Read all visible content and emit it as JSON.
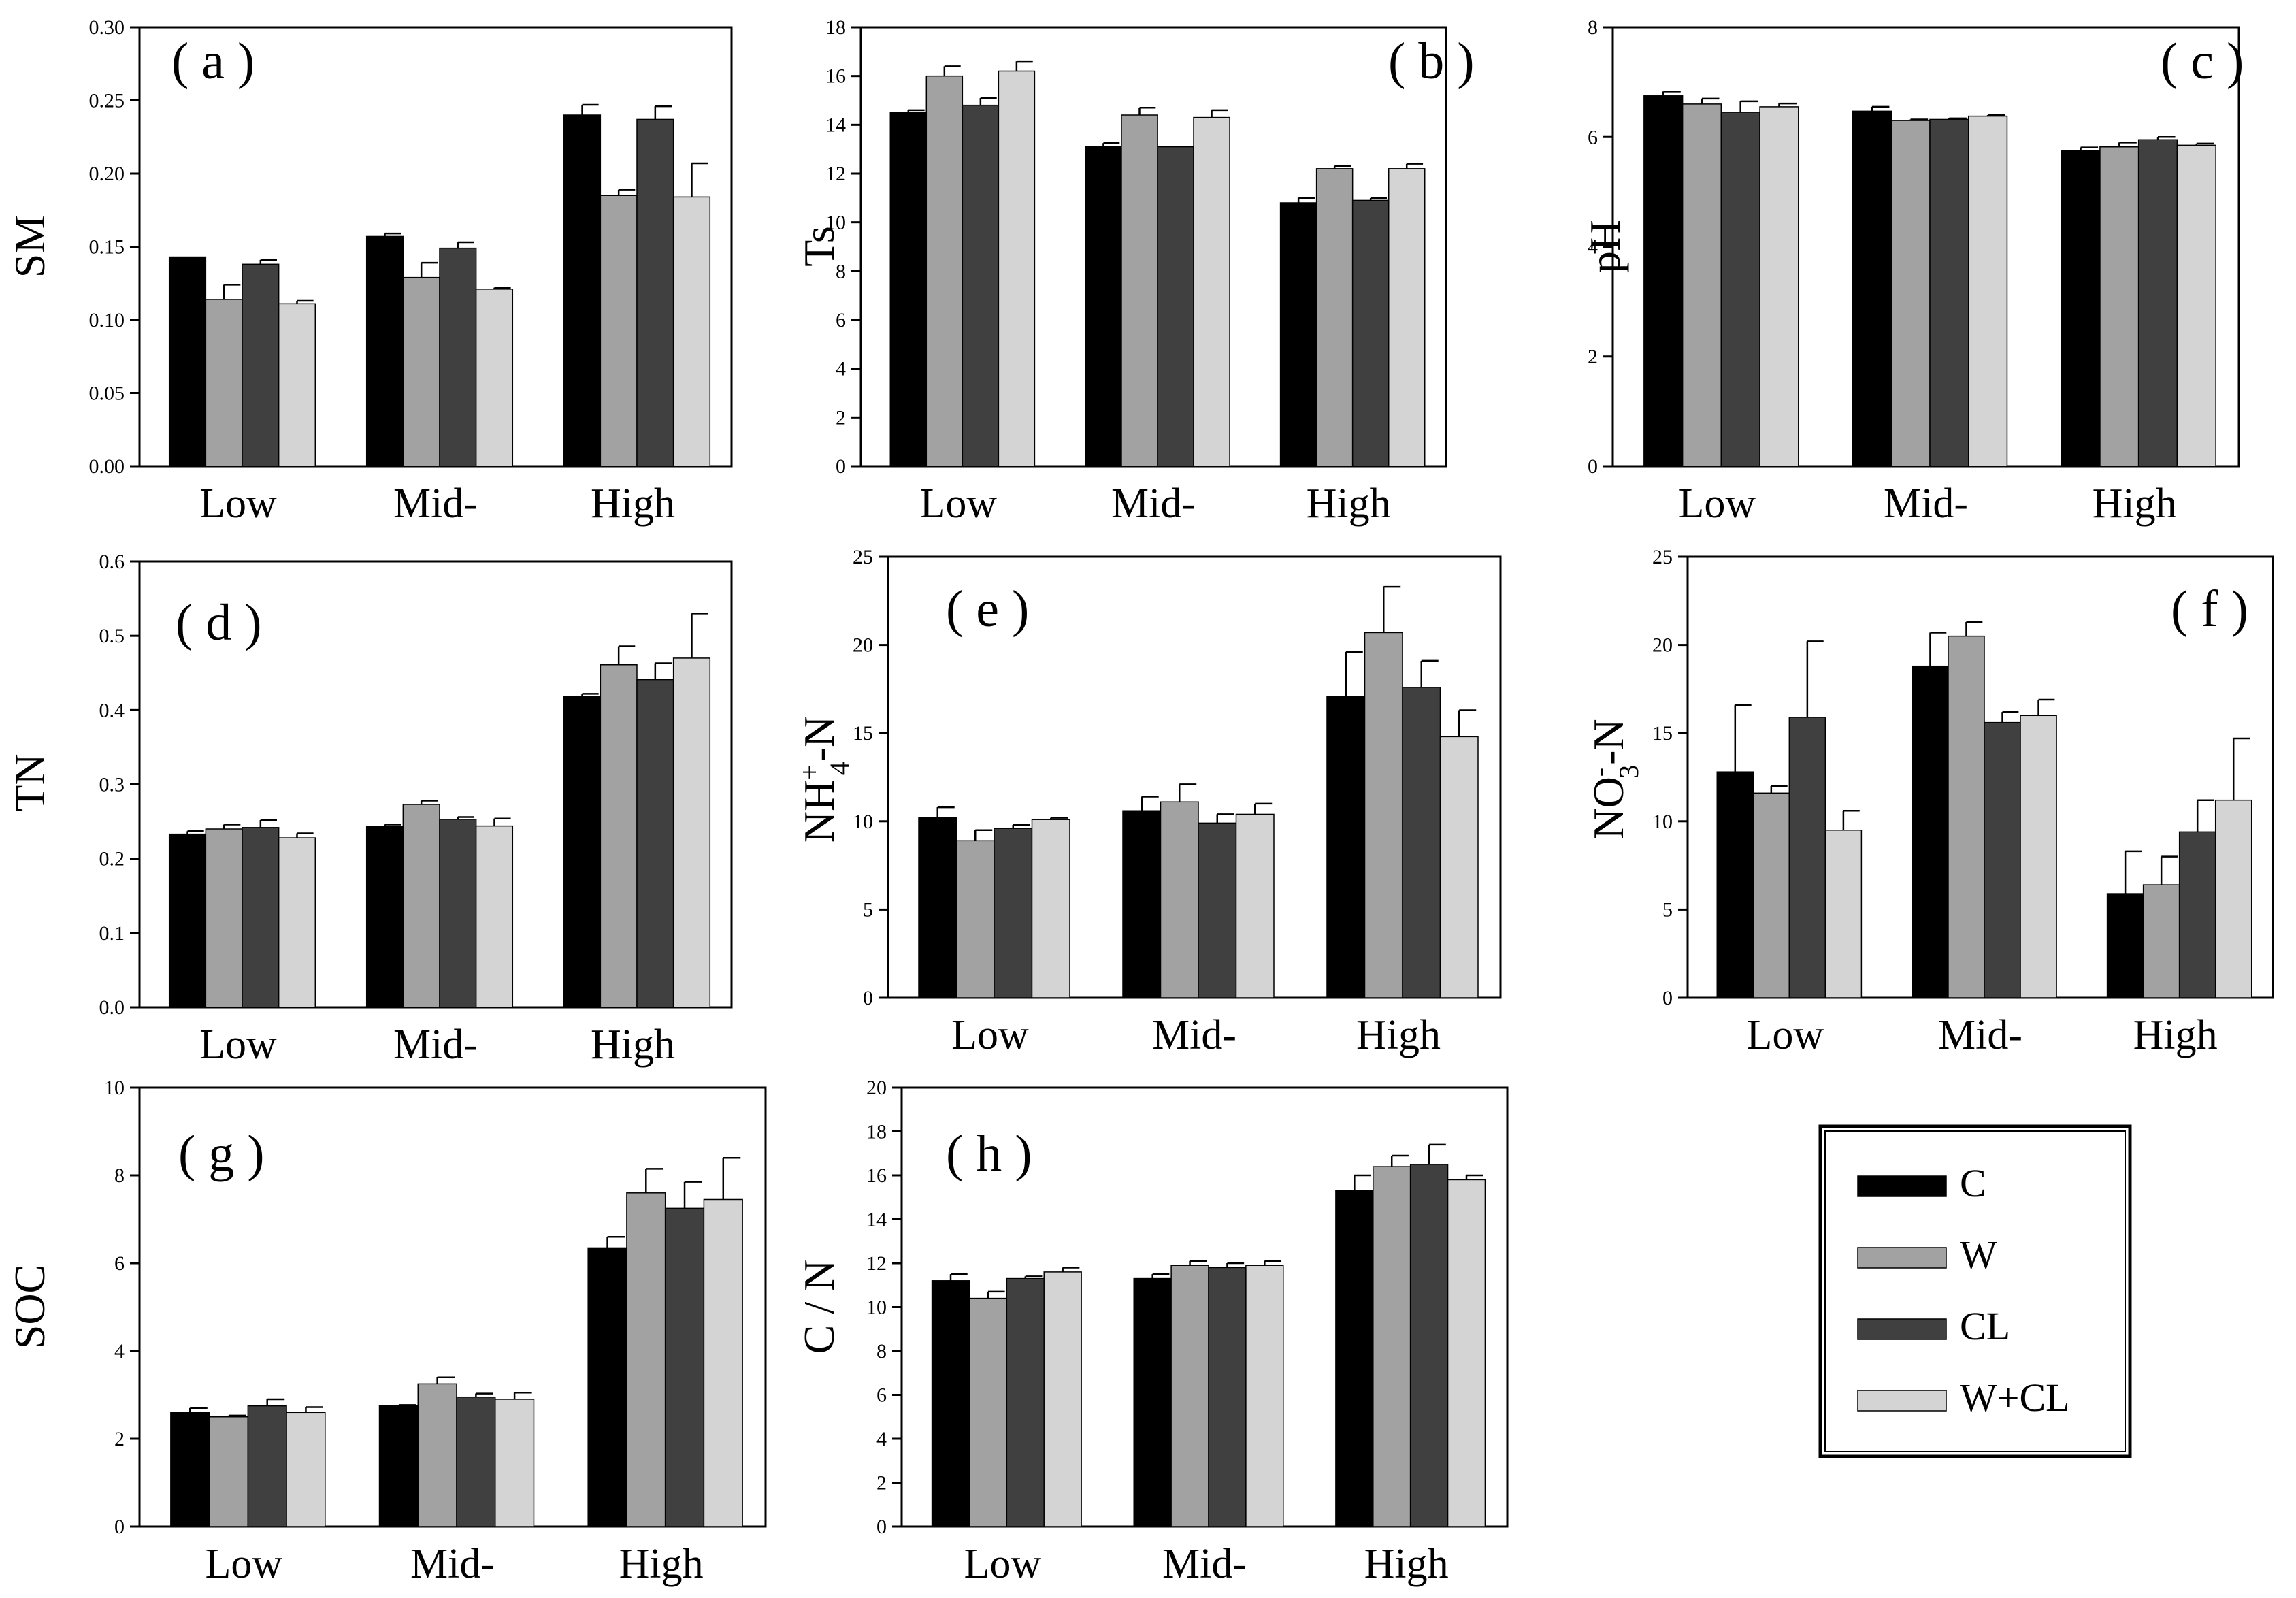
{
  "series_colors": {
    "C": "#000000",
    "W": "#a2a2a2",
    "CL": "#404040",
    "W+CL": "#d4d4d4"
  },
  "legend": {
    "entries": [
      "C",
      "W",
      "CL",
      "W+CL"
    ]
  },
  "chart_data": [
    {
      "id": "a",
      "type": "bar",
      "title": "( a )",
      "ylabel": "SM",
      "categories": [
        "Low",
        "Mid-",
        "High"
      ],
      "ylim": [
        0,
        0.3
      ],
      "yticks": [
        "0.00",
        "0.05",
        "0.10",
        "0.15",
        "0.20",
        "0.25",
        "0.30"
      ],
      "series": [
        {
          "name": "C",
          "values": [
            0.143,
            0.157,
            0.24
          ],
          "errors": [
            0.0,
            0.002,
            0.007
          ]
        },
        {
          "name": "W",
          "values": [
            0.114,
            0.129,
            0.185
          ],
          "errors": [
            0.01,
            0.01,
            0.004
          ]
        },
        {
          "name": "CL",
          "values": [
            0.138,
            0.149,
            0.237
          ],
          "errors": [
            0.003,
            0.004,
            0.009
          ]
        },
        {
          "name": "W+CL",
          "values": [
            0.111,
            0.121,
            0.184
          ],
          "errors": [
            0.002,
            0.001,
            0.023
          ]
        }
      ]
    },
    {
      "id": "b",
      "type": "bar",
      "title": "( b )",
      "ylabel": "Ts",
      "categories": [
        "Low",
        "Mid-",
        "High"
      ],
      "ylim": [
        0,
        18
      ],
      "yticks": [
        "0",
        "2",
        "4",
        "6",
        "8",
        "10",
        "12",
        "14",
        "16",
        "18"
      ],
      "series": [
        {
          "name": "C",
          "values": [
            14.5,
            13.1,
            10.8
          ],
          "errors": [
            0.1,
            0.15,
            0.2
          ]
        },
        {
          "name": "W",
          "values": [
            16.0,
            14.4,
            12.2
          ],
          "errors": [
            0.4,
            0.3,
            0.1
          ]
        },
        {
          "name": "CL",
          "values": [
            14.8,
            13.1,
            10.9
          ],
          "errors": [
            0.3,
            0.0,
            0.1
          ]
        },
        {
          "name": "W+CL",
          "values": [
            16.2,
            14.3,
            12.2
          ],
          "errors": [
            0.4,
            0.3,
            0.2
          ]
        }
      ]
    },
    {
      "id": "c",
      "type": "bar",
      "title": "( c )",
      "ylabel": "pH",
      "categories": [
        "Low",
        "Mid-",
        "High"
      ],
      "ylim": [
        0,
        8
      ],
      "yticks": [
        "0",
        "2",
        "4",
        "6",
        "8"
      ],
      "series": [
        {
          "name": "C",
          "values": [
            6.75,
            6.47,
            5.75
          ],
          "errors": [
            0.08,
            0.08,
            0.06
          ]
        },
        {
          "name": "W",
          "values": [
            6.6,
            6.3,
            5.82
          ],
          "errors": [
            0.1,
            0.02,
            0.08
          ]
        },
        {
          "name": "CL",
          "values": [
            6.45,
            6.32,
            5.95
          ],
          "errors": [
            0.2,
            0.02,
            0.05
          ]
        },
        {
          "name": "W+CL",
          "values": [
            6.55,
            6.38,
            5.85
          ],
          "errors": [
            0.06,
            0.02,
            0.03
          ]
        }
      ]
    },
    {
      "id": "d",
      "type": "bar",
      "title": "( d )",
      "ylabel": "TN",
      "categories": [
        "Low",
        "Mid-",
        "High"
      ],
      "ylim": [
        0,
        0.6
      ],
      "yticks": [
        "0.0",
        "0.1",
        "0.2",
        "0.3",
        "0.4",
        "0.5",
        "0.6"
      ],
      "series": [
        {
          "name": "C",
          "values": [
            0.233,
            0.243,
            0.418
          ],
          "errors": [
            0.004,
            0.003,
            0.004
          ]
        },
        {
          "name": "W",
          "values": [
            0.24,
            0.273,
            0.461
          ],
          "errors": [
            0.006,
            0.005,
            0.025
          ]
        },
        {
          "name": "CL",
          "values": [
            0.242,
            0.253,
            0.441
          ],
          "errors": [
            0.01,
            0.003,
            0.022
          ]
        },
        {
          "name": "W+CL",
          "values": [
            0.228,
            0.244,
            0.47
          ],
          "errors": [
            0.006,
            0.01,
            0.06
          ]
        }
      ]
    },
    {
      "id": "e",
      "type": "bar",
      "title": "( e )",
      "ylabel_main": "NH",
      "ylabel_sup": "+",
      "ylabel_sub": "4",
      "ylabel_tail": "-N",
      "categories": [
        "Low",
        "Mid-",
        "High"
      ],
      "ylim": [
        0,
        25
      ],
      "yticks": [
        "0",
        "5",
        "10",
        "15",
        "20",
        "25"
      ],
      "series": [
        {
          "name": "C",
          "values": [
            10.2,
            10.6,
            17.1
          ],
          "errors": [
            0.6,
            0.8,
            2.5
          ]
        },
        {
          "name": "W",
          "values": [
            8.9,
            11.1,
            20.7
          ],
          "errors": [
            0.6,
            1.0,
            2.6
          ]
        },
        {
          "name": "CL",
          "values": [
            9.6,
            9.9,
            17.6
          ],
          "errors": [
            0.2,
            0.5,
            1.5
          ]
        },
        {
          "name": "W+CL",
          "values": [
            10.1,
            10.4,
            14.8
          ],
          "errors": [
            0.1,
            0.6,
            1.5
          ]
        }
      ]
    },
    {
      "id": "f",
      "type": "bar",
      "title": "( f )",
      "ylabel_main": "NO",
      "ylabel_sup": "-",
      "ylabel_sub": "3",
      "ylabel_tail": "-N",
      "categories": [
        "Low",
        "Mid-",
        "High"
      ],
      "ylim": [
        0,
        25
      ],
      "yticks": [
        "0",
        "5",
        "10",
        "15",
        "20",
        "25"
      ],
      "series": [
        {
          "name": "C",
          "values": [
            12.8,
            18.8,
            5.9
          ],
          "errors": [
            3.8,
            1.9,
            2.4
          ]
        },
        {
          "name": "W",
          "values": [
            11.6,
            20.5,
            6.4
          ],
          "errors": [
            0.4,
            0.8,
            1.6
          ]
        },
        {
          "name": "CL",
          "values": [
            15.9,
            15.6,
            9.4
          ],
          "errors": [
            4.3,
            0.6,
            1.8
          ]
        },
        {
          "name": "W+CL",
          "values": [
            9.5,
            16.0,
            11.2
          ],
          "errors": [
            1.1,
            0.9,
            3.5
          ]
        }
      ]
    },
    {
      "id": "g",
      "type": "bar",
      "title": "( g )",
      "ylabel": "SOC",
      "categories": [
        "Low",
        "Mid-",
        "High"
      ],
      "ylim": [
        0,
        10
      ],
      "yticks": [
        "0",
        "2",
        "4",
        "6",
        "8",
        "10"
      ],
      "series": [
        {
          "name": "C",
          "values": [
            2.6,
            2.75,
            6.35
          ],
          "errors": [
            0.1,
            0.02,
            0.25
          ]
        },
        {
          "name": "W",
          "values": [
            2.5,
            3.25,
            7.6
          ],
          "errors": [
            0.03,
            0.15,
            0.55
          ]
        },
        {
          "name": "CL",
          "values": [
            2.75,
            2.95,
            7.25
          ],
          "errors": [
            0.15,
            0.08,
            0.6
          ]
        },
        {
          "name": "W+CL",
          "values": [
            2.6,
            2.9,
            7.45
          ],
          "errors": [
            0.12,
            0.15,
            0.95
          ]
        }
      ]
    },
    {
      "id": "h",
      "type": "bar",
      "title": "( h )",
      "ylabel": "C / N",
      "categories": [
        "Low",
        "Mid-",
        "High"
      ],
      "ylim": [
        0,
        20
      ],
      "yticks": [
        "0",
        "2",
        "4",
        "6",
        "8",
        "10",
        "12",
        "14",
        "16",
        "18",
        "20"
      ],
      "series": [
        {
          "name": "C",
          "values": [
            11.2,
            11.3,
            15.3
          ],
          "errors": [
            0.3,
            0.2,
            0.7
          ]
        },
        {
          "name": "W",
          "values": [
            10.4,
            11.9,
            16.4
          ],
          "errors": [
            0.3,
            0.2,
            0.5
          ]
        },
        {
          "name": "CL",
          "values": [
            11.3,
            11.8,
            16.5
          ],
          "errors": [
            0.1,
            0.2,
            0.9
          ]
        },
        {
          "name": "W+CL",
          "values": [
            11.6,
            11.9,
            15.8
          ],
          "errors": [
            0.2,
            0.2,
            0.2
          ]
        }
      ]
    }
  ]
}
